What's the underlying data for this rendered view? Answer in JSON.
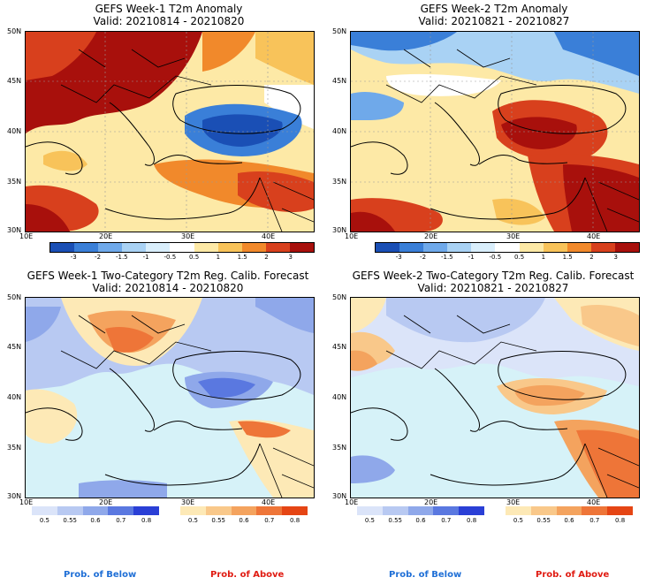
{
  "panels": [
    {
      "title": "GEFS Week-1 T2m Anomaly",
      "valid": "Valid: 20210814 - 20210820"
    },
    {
      "title": "GEFS Week-2 T2m Anomaly",
      "valid": "Valid: 20210821 - 20210827"
    },
    {
      "title": "GEFS Week-1 Two-Category T2m Reg. Calib. Forecast",
      "valid": "Valid: 20210814 - 20210820"
    },
    {
      "title": "GEFS Week-2 Two-Category T2m Reg. Calib. Forecast",
      "valid": "Valid: 20210821 - 20210827"
    }
  ],
  "lat_labels": [
    "50N",
    "45N",
    "40N",
    "35N",
    "30N"
  ],
  "lon_labels": [
    "10E",
    "20E",
    "30E",
    "40E"
  ],
  "anomaly_scale": {
    "ticks": [
      "-3",
      "-2",
      "-1.5",
      "-1",
      "-0.5",
      "0.5",
      "1",
      "1.5",
      "2",
      "3"
    ],
    "colors": [
      "#1a4fb5",
      "#3a7fd8",
      "#6fa9ea",
      "#a9d2f4",
      "#d9eefb",
      "#ffffff",
      "#fde9a6",
      "#f8c35a",
      "#f1892b",
      "#d8401d",
      "#a8100c"
    ]
  },
  "below_scale": {
    "ticks": [
      "0.5",
      "0.55",
      "0.6",
      "0.7",
      "0.8"
    ],
    "colors": [
      "#dbe4f9",
      "#b8c9f2",
      "#8fa8ea",
      "#5a78e0",
      "#2a3fd6"
    ]
  },
  "above_scale": {
    "ticks": [
      "0.5",
      "0.55",
      "0.6",
      "0.7",
      "0.8"
    ],
    "colors": [
      "#fde9b6",
      "#f9c88a",
      "#f4a35e",
      "#ee7538",
      "#e54514"
    ]
  },
  "footer": {
    "below": "Prob. of Below",
    "above": "Prob. of Above"
  },
  "colors": {
    "sea": "#d6f2f8",
    "below_label": "#1f6fd6",
    "above_label": "#e01b12"
  }
}
